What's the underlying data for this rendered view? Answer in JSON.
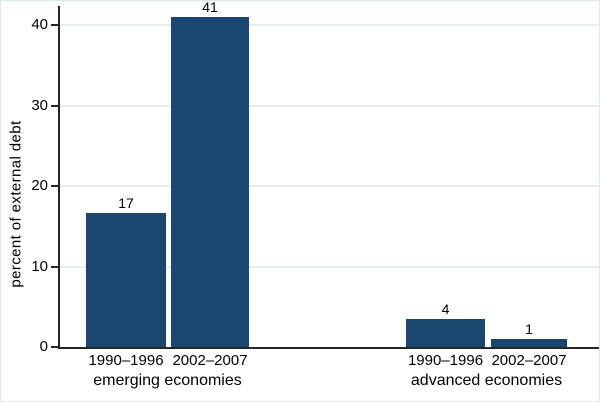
{
  "figure": {
    "background_color": "#ffffff",
    "border_color": "#dde8ed"
  },
  "chart_data": {
    "type": "bar",
    "title": "",
    "xlabel": "",
    "ylabel": "percent of external debt",
    "ylim": [
      0,
      42.5
    ],
    "yticks": [
      0,
      10,
      20,
      30,
      40
    ],
    "grid": true,
    "legend": "none",
    "gridline_color": "#e3eef3",
    "axis_color": "#262626",
    "bar_color": "#1a476f",
    "groups": [
      {
        "label": "emerging economies",
        "bars": [
          {
            "period": "1990–1996",
            "value": 17,
            "plotted": 16.6
          },
          {
            "period": "2002–2007",
            "value": 41,
            "plotted": 41
          }
        ]
      },
      {
        "label": "advanced economies",
        "bars": [
          {
            "period": "1990–1996",
            "value": 4,
            "plotted": 3.5
          },
          {
            "period": "2002–2007",
            "value": 1,
            "plotted": 1
          }
        ]
      }
    ]
  }
}
